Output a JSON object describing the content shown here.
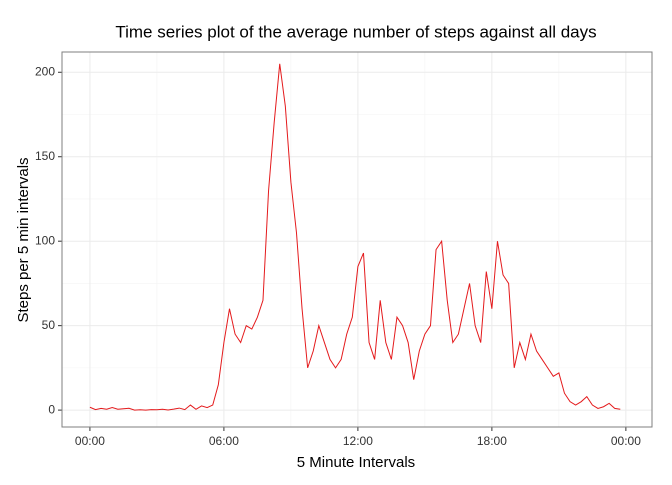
{
  "chart_data": {
    "type": "line",
    "title": "Time series plot of the average number of steps against all days",
    "x_label": "5 Minute Intervals",
    "y_label": "Steps per 5 min intervals",
    "x": [
      0,
      0.25,
      0.5,
      0.75,
      1,
      1.25,
      1.5,
      1.75,
      2,
      2.25,
      2.5,
      2.75,
      3,
      3.25,
      3.5,
      3.75,
      4,
      4.25,
      4.5,
      4.75,
      5,
      5.25,
      5.5,
      5.75,
      6,
      6.25,
      6.5,
      6.75,
      7,
      7.25,
      7.5,
      7.75,
      8,
      8.25,
      8.5,
      8.75,
      9,
      9.25,
      9.5,
      9.75,
      10,
      10.25,
      10.5,
      10.75,
      11,
      11.25,
      11.5,
      11.75,
      12,
      12.25,
      12.5,
      12.75,
      13,
      13.25,
      13.5,
      13.75,
      14,
      14.25,
      14.5,
      14.75,
      15,
      15.25,
      15.5,
      15.75,
      16,
      16.25,
      16.5,
      16.75,
      17,
      17.25,
      17.5,
      17.75,
      18,
      18.25,
      18.5,
      18.75,
      19,
      19.25,
      19.5,
      19.75,
      20,
      20.25,
      20.5,
      20.75,
      21,
      21.25,
      21.5,
      21.75,
      22,
      22.25,
      22.5,
      22.75,
      23,
      23.25,
      23.5,
      23.75
    ],
    "series": [
      {
        "name": "steps",
        "color": "#e41a1c",
        "values": [
          1.7,
          0.3,
          1,
          0.5,
          1.5,
          0.5,
          0.8,
          1.1,
          0,
          0.2,
          0,
          0.3,
          0.2,
          0.5,
          0.1,
          0.6,
          1.2,
          0.3,
          3,
          0.5,
          2.5,
          1.5,
          3,
          15,
          40,
          60,
          45,
          40,
          50,
          48,
          55,
          65,
          130,
          170,
          205,
          180,
          135,
          105,
          60,
          25,
          35,
          50,
          40,
          30,
          25,
          30,
          45,
          55,
          85,
          93,
          40,
          30,
          65,
          40,
          30,
          55,
          50,
          40,
          18,
          35,
          45,
          50,
          95,
          100,
          65,
          40,
          45,
          60,
          75,
          50,
          40,
          82,
          60,
          100,
          80,
          75,
          25,
          40,
          30,
          45,
          35,
          30,
          25,
          20,
          22,
          10,
          5,
          3,
          5,
          8,
          3,
          1,
          2,
          4,
          1,
          0.5
        ]
      }
    ],
    "xlim": [
      -1.25,
      25.17
    ],
    "ylim": [
      -10,
      212
    ],
    "xticks": [
      {
        "value": 0,
        "label": "00:00"
      },
      {
        "value": 6,
        "label": "06:00"
      },
      {
        "value": 12,
        "label": "12:00"
      },
      {
        "value": 18,
        "label": "18:00"
      },
      {
        "value": 24,
        "label": "00:00"
      }
    ],
    "yticks": [
      0,
      50,
      100,
      150,
      200
    ],
    "grid": true
  }
}
